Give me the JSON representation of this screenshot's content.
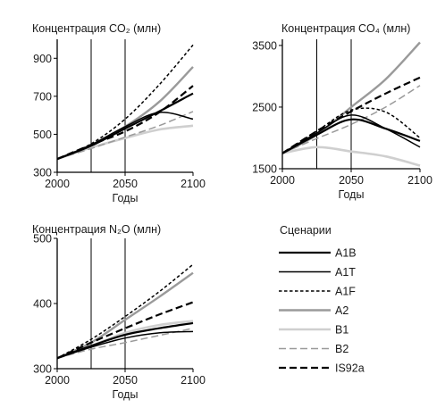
{
  "chart_data": [
    {
      "type": "line",
      "title": "Концентрация CO₂ (млн)",
      "xlabel": "Годы",
      "ylabel": "",
      "xlim": [
        2000,
        2100
      ],
      "ylim": [
        300,
        1000
      ],
      "xticks": [
        "2000",
        "2050",
        "2100"
      ],
      "yticks": [
        "300",
        "500",
        "700",
        "900"
      ],
      "marker_years": [
        2025,
        2050
      ],
      "x": [
        2000,
        2025,
        2050,
        2075,
        2100
      ],
      "series": [
        {
          "name": "A1B",
          "values": [
            370,
            440,
            530,
            620,
            715
          ]
        },
        {
          "name": "A1T",
          "values": [
            370,
            445,
            540,
            615,
            580
          ]
        },
        {
          "name": "A1F",
          "values": [
            370,
            450,
            580,
            760,
            970
          ]
        },
        {
          "name": "A2",
          "values": [
            370,
            440,
            540,
            670,
            855
          ]
        },
        {
          "name": "B1",
          "values": [
            370,
            430,
            480,
            525,
            545
          ]
        },
        {
          "name": "B2",
          "values": [
            370,
            425,
            485,
            545,
            620
          ]
        },
        {
          "name": "IS92a",
          "values": [
            370,
            445,
            515,
            615,
            755
          ]
        }
      ]
    },
    {
      "type": "line",
      "title": "Концентрация CO₄ (млн)",
      "xlabel": "Годы",
      "ylabel": "",
      "xlim": [
        2000,
        2100
      ],
      "ylim": [
        1500,
        3600
      ],
      "xticks": [
        "2000",
        "2050",
        "2100"
      ],
      "yticks": [
        "1500",
        "2500",
        "3500"
      ],
      "marker_years": [
        2025,
        2050
      ],
      "x": [
        2000,
        2025,
        2050,
        2075,
        2100
      ],
      "series": [
        {
          "name": "A1B",
          "values": [
            1750,
            2050,
            2300,
            2150,
            1950
          ]
        },
        {
          "name": "A1T",
          "values": [
            1750,
            2080,
            2370,
            2150,
            1850
          ]
        },
        {
          "name": "A1F",
          "values": [
            1750,
            2110,
            2450,
            2420,
            2000
          ]
        },
        {
          "name": "A2",
          "values": [
            1750,
            2050,
            2500,
            2950,
            3550
          ]
        },
        {
          "name": "B1",
          "values": [
            1750,
            1850,
            1780,
            1700,
            1550
          ]
        },
        {
          "name": "B2",
          "values": [
            1750,
            1990,
            2220,
            2500,
            2850
          ]
        },
        {
          "name": "IS92a",
          "values": [
            1750,
            2110,
            2430,
            2720,
            2980
          ]
        }
      ]
    },
    {
      "type": "line",
      "title": "Концентрация N₂O (млн)",
      "xlabel": "Годы",
      "ylabel": "",
      "xlim": [
        2000,
        2100
      ],
      "ylim": [
        300,
        500
      ],
      "xticks": [
        "2000",
        "2050",
        "2100"
      ],
      "yticks": [
        "300",
        "400",
        "500"
      ],
      "marker_years": [
        2025,
        2050
      ],
      "x": [
        2000,
        2025,
        2050,
        2075,
        2100
      ],
      "series": [
        {
          "name": "A1B",
          "values": [
            316,
            335,
            352,
            362,
            370
          ]
        },
        {
          "name": "A1T",
          "values": [
            316,
            333,
            347,
            355,
            357
          ]
        },
        {
          "name": "A1F",
          "values": [
            316,
            345,
            380,
            418,
            460
          ]
        },
        {
          "name": "A2",
          "values": [
            316,
            340,
            375,
            410,
            447
          ]
        },
        {
          "name": "B1",
          "values": [
            316,
            335,
            355,
            367,
            373
          ]
        },
        {
          "name": "B2",
          "values": [
            316,
            330,
            340,
            351,
            362
          ]
        },
        {
          "name": "IS92a",
          "values": [
            316,
            340,
            362,
            383,
            402
          ]
        }
      ]
    }
  ],
  "legend": {
    "title": "Сценарии",
    "entries": [
      {
        "name": "A1B",
        "color": "#000000",
        "dash": "solid",
        "width": 2.2
      },
      {
        "name": "A1T",
        "color": "#000000",
        "dash": "solid",
        "width": 1.5
      },
      {
        "name": "A1F",
        "color": "#000000",
        "dash": "short-dash",
        "width": 1.5
      },
      {
        "name": "A2",
        "color": "#9a9a9a",
        "dash": "solid",
        "width": 2.4
      },
      {
        "name": "B1",
        "color": "#cfcfcf",
        "dash": "solid",
        "width": 2.6
      },
      {
        "name": "B2",
        "color": "#9a9a9a",
        "dash": "long-dash",
        "width": 1.5
      },
      {
        "name": "IS92a",
        "color": "#000000",
        "dash": "long-dash",
        "width": 2.2
      }
    ]
  }
}
